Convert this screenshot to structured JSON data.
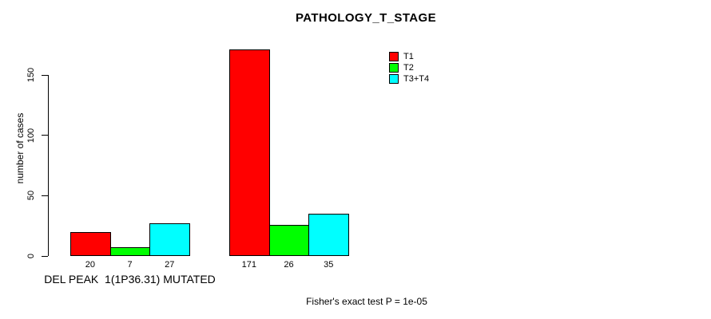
{
  "chart_data": {
    "type": "bar",
    "title": "PATHOLOGY_T_STAGE",
    "ylabel": "number of cases",
    "xlabel": "",
    "categories": [
      "DEL PEAK  1(1P36.31) MUTATED",
      ""
    ],
    "series": [
      {
        "name": "T1",
        "color": "#ff0000",
        "values": [
          20,
          171
        ]
      },
      {
        "name": "T2",
        "color": "#00ff00",
        "values": [
          7,
          26
        ]
      },
      {
        "name": "T3+T4",
        "color": "#00ffff",
        "values": [
          27,
          35
        ]
      }
    ],
    "y_ticks": [
      0,
      50,
      100,
      150
    ],
    "ylim": [
      0,
      171
    ],
    "grid": false,
    "legend_position": "top-right",
    "bar_edge_color": "#000000",
    "annotation": "Fisher's exact test P = 1e-05"
  }
}
